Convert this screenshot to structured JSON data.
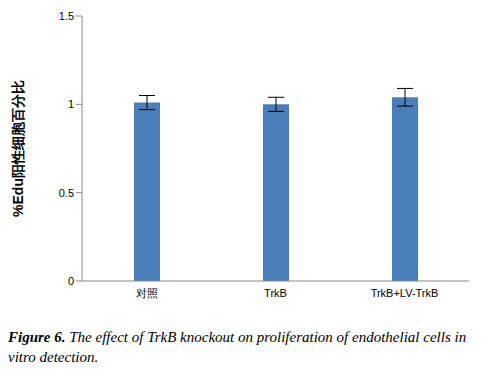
{
  "chart_data": {
    "type": "bar",
    "y_label": "%Edu阳性细胞百分比",
    "caption_label": "Figure 6.",
    "caption": "The effect of TrkB knockout on proliferation of endothelial cells in vitro detection.",
    "categories": [
      "对照",
      "TrkB",
      "TrkB+LV-TrkB"
    ],
    "values": [
      1.01,
      1.0,
      1.04
    ],
    "errors": [
      0.04,
      0.04,
      0.05
    ],
    "color": "#4a7ebb",
    "ylim": [
      0,
      1.5
    ],
    "yticks": [
      0,
      0.5,
      1,
      1.5
    ],
    "grid": false
  }
}
